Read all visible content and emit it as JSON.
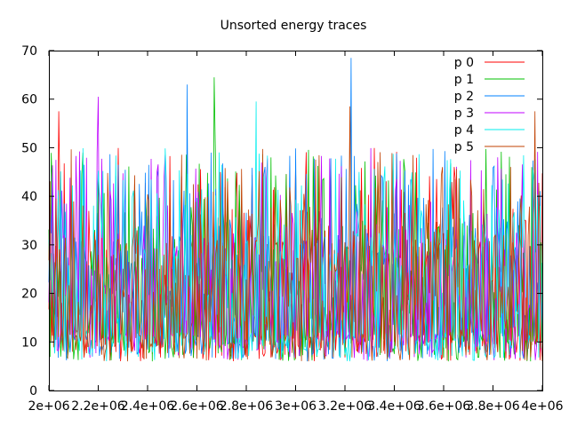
{
  "chart_data": {
    "type": "line",
    "title": "Unsorted energy traces",
    "xlabel": "",
    "ylabel": "",
    "xlim": [
      2000000,
      4000000
    ],
    "ylim": [
      0,
      70
    ],
    "x_ticks": [
      2000000,
      2200000,
      2400000,
      2600000,
      2800000,
      3000000,
      3200000,
      3400000,
      3600000,
      3800000,
      4000000
    ],
    "x_tick_labels": [
      "2e+06",
      "2.2e+06",
      "2.4e+06",
      "2.6e+06",
      "2.8e+06",
      "3e+06",
      "3.2e+06",
      "3.4e+06",
      "3.6e+06",
      "3.8e+06",
      "4e+06"
    ],
    "y_ticks": [
      0,
      10,
      20,
      30,
      40,
      50,
      60,
      70
    ],
    "y_tick_labels": [
      "0",
      "10",
      "20",
      "30",
      "40",
      "50",
      "60",
      "70"
    ],
    "grid": false,
    "legend_position": "top-right",
    "series": [
      {
        "name": "p 0",
        "color": "#ff0000"
      },
      {
        "name": "p 1",
        "color": "#00c000"
      },
      {
        "name": "p 2",
        "color": "#0080ff"
      },
      {
        "name": "p 3",
        "color": "#c000ff"
      },
      {
        "name": "p 4",
        "color": "#00eeee"
      },
      {
        "name": "p 5",
        "color": "#c04000"
      }
    ],
    "value_range_typical": [
      5,
      55
    ],
    "peaks": [
      {
        "series": "p 2",
        "x": 3225000,
        "y": 68.5
      },
      {
        "series": "p 1",
        "x": 2670000,
        "y": 64.5
      },
      {
        "series": "p 2",
        "x": 2560000,
        "y": 63
      },
      {
        "series": "p 3",
        "x": 2200000,
        "y": 60.5
      },
      {
        "series": "p 4",
        "x": 2840000,
        "y": 59.5
      },
      {
        "series": "p 5",
        "x": 3220000,
        "y": 58.5
      },
      {
        "series": "p 0",
        "x": 2040000,
        "y": 57.5
      },
      {
        "series": "p 5",
        "x": 3970000,
        "y": 57.5
      }
    ]
  }
}
